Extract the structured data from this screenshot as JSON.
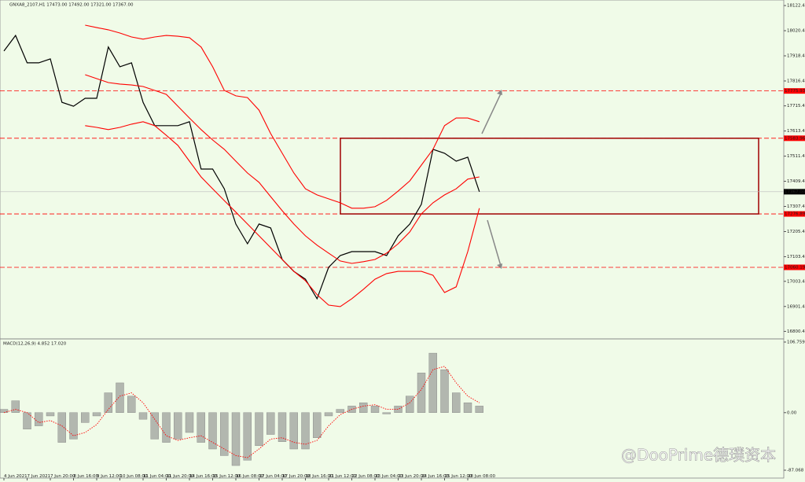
{
  "chart_data": [
    {
      "type": "line",
      "title": "GNXA8_2107,H1  17473.00 17492.00 17321.00 17367.00",
      "ylim": [
        16773,
        18129
      ],
      "yticks": [
        {
          "value": 18122.4,
          "label": "18122.40"
        },
        {
          "value": 18020.4,
          "label": "18020.40"
        },
        {
          "value": 17918.4,
          "label": "17918.40"
        },
        {
          "value": 17816.4,
          "label": "17816.40"
        },
        {
          "value": 17715.4,
          "label": "17715.40"
        },
        {
          "value": 17613.4,
          "label": "17613.40"
        },
        {
          "value": 17511.4,
          "label": "17511.40"
        },
        {
          "value": 17409.4,
          "label": "17409.40"
        },
        {
          "value": 17307.4,
          "label": "17307.40"
        },
        {
          "value": 17205.4,
          "label": "17205.40"
        },
        {
          "value": 17103.4,
          "label": "17103.40"
        },
        {
          "value": 17003.4,
          "label": "17003.40"
        },
        {
          "value": 16901.4,
          "label": "16901.40"
        },
        {
          "value": 16800.4,
          "label": "16800.40"
        }
      ],
      "series": [
        {
          "color": "#000000",
          "values": [
            17938,
            18001,
            17890,
            17890,
            17906,
            17730,
            17714,
            17746,
            17746,
            17954,
            17874,
            17890,
            17730,
            17635,
            17635,
            17635,
            17651,
            17459,
            17459,
            17379,
            17236,
            17156,
            17236,
            17220,
            17092,
            17044,
            17012,
            16933,
            17060,
            17108,
            17124,
            17124,
            17124,
            17108,
            17188,
            17236,
            17316,
            17539,
            17523,
            17491,
            17507,
            17367
          ]
        },
        {
          "color": "#ff0000",
          "values": [
            null,
            null,
            null,
            null,
            null,
            null,
            null,
            18043,
            18033,
            18024,
            18011,
            17995,
            17986,
            17995,
            18001,
            17998,
            17992,
            17954,
            17874,
            17778,
            17756,
            17749,
            17698,
            17603,
            17523,
            17443,
            17379,
            17354,
            17338,
            17322,
            17300,
            17300,
            17306,
            17332,
            17370,
            17411,
            17475,
            17539,
            17635,
            17666,
            17666,
            17651
          ]
        },
        {
          "color": "#ff0000",
          "values": [
            null,
            null,
            null,
            null,
            null,
            null,
            null,
            17842,
            17826,
            17810,
            17804,
            17800,
            17794,
            17778,
            17762,
            17714,
            17666,
            17619,
            17577,
            17539,
            17491,
            17443,
            17405,
            17347,
            17290,
            17236,
            17188,
            17150,
            17118,
            17086,
            17076,
            17083,
            17092,
            17118,
            17156,
            17204,
            17277,
            17322,
            17354,
            17379,
            17418,
            17427
          ]
        },
        {
          "color": "#ff0000",
          "values": [
            null,
            null,
            null,
            null,
            null,
            null,
            null,
            17635,
            17628,
            17619,
            17628,
            17641,
            17651,
            17635,
            17596,
            17555,
            17491,
            17427,
            17379,
            17331,
            17284,
            17236,
            17188,
            17140,
            17092,
            17044,
            17006,
            16949,
            16907,
            16901,
            16933,
            16971,
            17012,
            17035,
            17044,
            17044,
            17044,
            17028,
            16958,
            16981,
            17124,
            17300
          ]
        }
      ],
      "levels": [
        17775.93,
        17583.96,
        17276.89,
        17060.19
      ],
      "level_color": "#ff0000",
      "last_price": {
        "value": 17367,
        "label": "17367.00"
      }
    },
    {
      "type": "bar",
      "title": "MACD(12,26,9) 4.852 17.020",
      "categories": [
        "4 Jun 2021",
        null,
        "7 Jun 2021",
        null,
        "7 Jun 20:00",
        null,
        "8 Jun 16:00",
        null,
        "9 Jun 12:00",
        null,
        "10 Jun 08:00",
        null,
        "11 Jun 04:00",
        null,
        "11 Jun 20:00",
        null,
        "14 Jun 16:00",
        null,
        "15 Jun 12:00",
        null,
        "16 Jun 08:00",
        null,
        "17 Jun 04:00",
        null,
        "17 Jun 20:00",
        null,
        "18 Jun 16:00",
        null,
        "21 Jun 12:00",
        null,
        "22 Jun 08:00",
        null,
        "23 Jun 04:00",
        null,
        "23 Jun 20:00",
        null,
        "24 Jun 16:00",
        null,
        "25 Jun 12:00",
        null,
        "28 Jun 08:00",
        null
      ],
      "ylim": [
        -87.068,
        106.759
      ],
      "yticks": [
        {
          "value": 106.759,
          "label": "106.759"
        },
        {
          "value": 0,
          "label": "0.00"
        },
        {
          "value": -87.068,
          "label": "-87.068"
        }
      ],
      "series": [
        {
          "color": "#808080",
          "values": [
            5,
            18,
            -25,
            -20,
            -5,
            -45,
            -40,
            -15,
            -5,
            30,
            45,
            25,
            -10,
            -40,
            -45,
            -40,
            -30,
            -45,
            -55,
            -65,
            -80,
            -72,
            -50,
            -33,
            -44,
            -55,
            -55,
            -38,
            -5,
            5,
            10,
            15,
            10,
            -2,
            10,
            25,
            60,
            90,
            65,
            30,
            15,
            10
          ]
        },
        {
          "color": "#ff0000",
          "values": [
            0,
            5,
            0,
            -15,
            -12,
            -20,
            -35,
            -30,
            -18,
            5,
            25,
            30,
            15,
            -10,
            -35,
            -42,
            -38,
            -35,
            -45,
            -55,
            -65,
            -68,
            -55,
            -40,
            -38,
            -45,
            -48,
            -42,
            -20,
            -3,
            5,
            10,
            12,
            5,
            5,
            15,
            35,
            65,
            70,
            45,
            25,
            15
          ]
        }
      ]
    }
  ],
  "watermark": "@DooPrime德璞资本"
}
